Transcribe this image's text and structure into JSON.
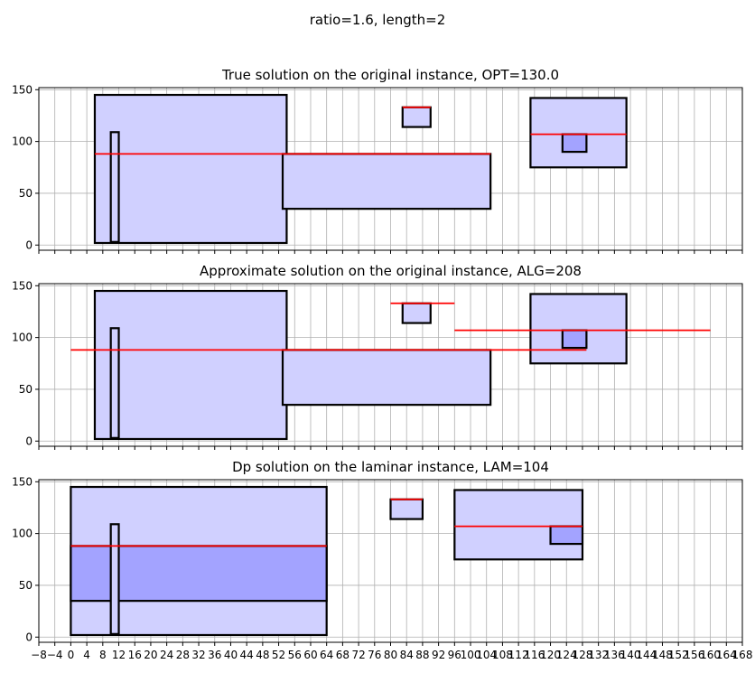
{
  "suptitle": "ratio=1.6, length=2",
  "chart_data": [
    {
      "type": "rectangles",
      "title": "True solution on the original instance, OPT=130.0",
      "xlim": [
        -8,
        168
      ],
      "ylim": [
        -5,
        152
      ],
      "yticks": [
        0,
        50,
        100,
        150
      ],
      "xgrid_step": 4,
      "grid": true,
      "rects": [
        {
          "x0": 6,
          "x1": 54,
          "y0": 2,
          "y1": 145,
          "shade": "light"
        },
        {
          "x0": 10,
          "x1": 12,
          "y0": 3,
          "y1": 109,
          "shade": "light"
        },
        {
          "x0": 53,
          "x1": 105,
          "y0": 35,
          "y1": 88,
          "shade": "light"
        },
        {
          "x0": 83,
          "x1": 90,
          "y0": 114,
          "y1": 133,
          "shade": "light"
        },
        {
          "x0": 115,
          "x1": 139,
          "y0": 75,
          "y1": 142,
          "shade": "light"
        },
        {
          "x0": 123,
          "x1": 129,
          "y0": 90,
          "y1": 107,
          "shade": "dark"
        }
      ],
      "lines": [
        {
          "x0": 6,
          "x1": 105,
          "y": 88
        },
        {
          "x0": 83,
          "x1": 90,
          "y": 133
        },
        {
          "x0": 115,
          "x1": 139,
          "y": 107
        }
      ]
    },
    {
      "type": "rectangles",
      "title": "Approximate solution on the original instance, ALG=208",
      "xlim": [
        -8,
        168
      ],
      "ylim": [
        -5,
        152
      ],
      "yticks": [
        0,
        50,
        100,
        150
      ],
      "xgrid_step": 4,
      "grid": true,
      "rects": [
        {
          "x0": 6,
          "x1": 54,
          "y0": 2,
          "y1": 145,
          "shade": "light"
        },
        {
          "x0": 10,
          "x1": 12,
          "y0": 3,
          "y1": 109,
          "shade": "light"
        },
        {
          "x0": 53,
          "x1": 105,
          "y0": 35,
          "y1": 88,
          "shade": "light"
        },
        {
          "x0": 83,
          "x1": 90,
          "y0": 114,
          "y1": 133,
          "shade": "light"
        },
        {
          "x0": 115,
          "x1": 139,
          "y0": 75,
          "y1": 142,
          "shade": "light"
        },
        {
          "x0": 123,
          "x1": 129,
          "y0": 90,
          "y1": 107,
          "shade": "dark"
        }
      ],
      "lines": [
        {
          "x0": 0,
          "x1": 129,
          "y": 88
        },
        {
          "x0": 80,
          "x1": 96,
          "y": 133
        },
        {
          "x0": 96,
          "x1": 160,
          "y": 107
        }
      ]
    },
    {
      "type": "rectangles",
      "title": "Dp solution on the laminar instance, LAM=104",
      "xlim": [
        -8,
        168
      ],
      "ylim": [
        -5,
        152
      ],
      "yticks": [
        0,
        50,
        100,
        150
      ],
      "xticks": [
        -8,
        -4,
        0,
        4,
        8,
        12,
        16,
        20,
        24,
        28,
        32,
        36,
        40,
        44,
        48,
        52,
        56,
        60,
        64,
        68,
        72,
        76,
        80,
        84,
        88,
        92,
        96,
        100,
        104,
        108,
        112,
        116,
        120,
        124,
        128,
        132,
        136,
        140,
        144,
        148,
        152,
        156,
        160,
        164,
        168
      ],
      "xgrid_step": 4,
      "grid": true,
      "rects": [
        {
          "x0": 0,
          "x1": 64,
          "y0": 2,
          "y1": 145,
          "shade": "light"
        },
        {
          "x0": 0,
          "x1": 64,
          "y0": 35,
          "y1": 88,
          "shade": "medium"
        },
        {
          "x0": 10,
          "x1": 12,
          "y0": 3,
          "y1": 109,
          "shade": "light"
        },
        {
          "x0": 80,
          "x1": 88,
          "y0": 114,
          "y1": 133,
          "shade": "light"
        },
        {
          "x0": 96,
          "x1": 128,
          "y0": 75,
          "y1": 142,
          "shade": "light"
        },
        {
          "x0": 120,
          "x1": 128,
          "y0": 90,
          "y1": 107,
          "shade": "dark"
        }
      ],
      "lines": [
        {
          "x0": 0,
          "x1": 64,
          "y": 88
        },
        {
          "x0": 80,
          "x1": 88,
          "y": 133
        },
        {
          "x0": 96,
          "x1": 128,
          "y": 107
        }
      ]
    }
  ],
  "colors": {
    "fill_light": "#d0d0ff",
    "fill_medium": "#a3a3ff",
    "fill_dark": "#a3a3ff",
    "edge": "#000000",
    "line": "#ff0000",
    "grid": "#b0b0b0"
  }
}
